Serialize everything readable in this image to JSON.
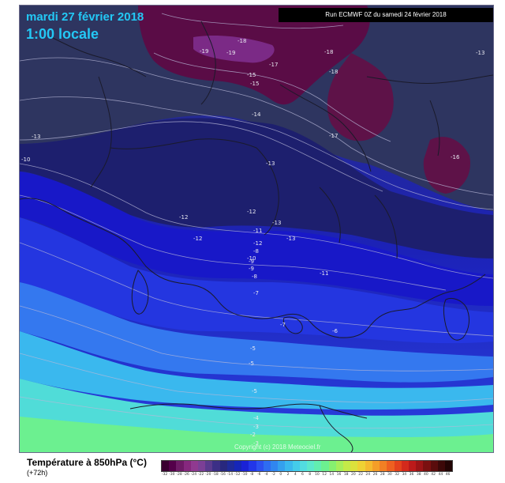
{
  "header": {
    "date": "mardi 27 février 2018",
    "time": "1:00 locale",
    "run": "Run ECMWF 0Z du samedi 24 février 2018"
  },
  "footer": {
    "copyright": "Copyright (c) 2018 Meteociel.fr"
  },
  "legend": {
    "title": "Température à 850hPa (°C)",
    "subtitle": "(+72h)",
    "colors": [
      "#3a0030",
      "#54004a",
      "#6e1a66",
      "#86287e",
      "#903a90",
      "#7b3f96",
      "#5a3a8e",
      "#3c2f86",
      "#28287e",
      "#1f2a9a",
      "#1626b8",
      "#1a22d6",
      "#2236e8",
      "#2c50f0",
      "#2e6cf2",
      "#3086f0",
      "#34a0ee",
      "#3ab8ee",
      "#44ccea",
      "#52dce0",
      "#5ce8cc",
      "#62eeb0",
      "#6cf090",
      "#86f070",
      "#a6ee5a",
      "#c4ea48",
      "#dce23c",
      "#eed234",
      "#f4ba2e",
      "#f49e28",
      "#f28024",
      "#ee6020",
      "#e4421c",
      "#d42a1c",
      "#bc1a1a",
      "#9c1416",
      "#7a1010",
      "#5a0c0c",
      "#3c0808",
      "#220404"
    ],
    "ticks": [
      "-32",
      "-30",
      "-28",
      "-26",
      "-24",
      "-22",
      "-20",
      "-18",
      "-16",
      "-14",
      "-12",
      "-10",
      "-8",
      "-6",
      "-4",
      "-2",
      "0",
      "2",
      "4",
      "6",
      "8",
      "10",
      "12",
      "14",
      "16",
      "18",
      "20",
      "22",
      "24",
      "26",
      "28",
      "30",
      "32",
      "34",
      "36",
      "38",
      "40",
      "42",
      "44",
      "46"
    ]
  },
  "map": {
    "contour_labels": [
      "-19",
      "-19",
      "-18",
      "-18",
      "-18",
      "-17",
      "-15",
      "-15",
      "-13",
      "-14",
      "-13",
      "-10",
      "-17",
      "-16",
      "-13",
      "-12",
      "-12",
      "-12",
      "-13",
      "-11",
      "-13",
      "-12",
      "-11",
      "-10",
      "-9",
      "-8",
      "-7",
      "-7",
      "-6",
      "-5",
      "-5",
      "-5",
      "-4",
      "-3",
      "-2",
      "-3",
      "-8",
      "-9"
    ]
  }
}
